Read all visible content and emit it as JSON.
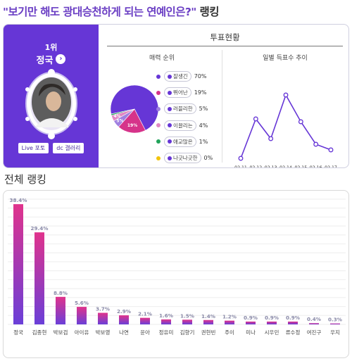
{
  "headline": {
    "question": "\"보기만 해도 광대승천하게 되는 연예인은?\"",
    "suffix": " 랭킹"
  },
  "winner": {
    "rank_label": "1위",
    "name": "정국",
    "arrow": "›",
    "links": [
      "Live 포토",
      "dc 갤러리"
    ]
  },
  "vote": {
    "title": "투표현황",
    "charm_title": "매력 순위",
    "daily_title": "일별 득표수 추이"
  },
  "colors": {
    "accent": "#6636d6",
    "bar_top": "#e0338c",
    "bar_bottom": "#6a3fd8"
  },
  "chart_data": [
    {
      "type": "pie",
      "title": "매력 순위",
      "labels": [
        "잘생긴",
        "뛰어난",
        "러블리한",
        "이끌리는",
        "애교많은",
        "나긋나긋한"
      ],
      "values": [
        70,
        19,
        5,
        4,
        1,
        0
      ],
      "value_labels": [
        "70%",
        "19%",
        "5%",
        "4%",
        "1%",
        "0%"
      ],
      "slice_labels": [
        "",
        "19%",
        "5%",
        "4%",
        "",
        ""
      ],
      "colors": [
        "#6636d6",
        "#d6338a",
        "#a07fe0",
        "#e088c4",
        "#22a35a",
        "#f2c40c"
      ],
      "legend_position": "right"
    },
    {
      "type": "line",
      "title": "일별 득표수 추이",
      "x": [
        "02.11",
        "02.12",
        "02.13",
        "02.14",
        "02.15",
        "02.16",
        "02.17"
      ],
      "y": [
        2,
        58,
        30,
        92,
        54,
        22,
        14
      ],
      "ylim": [
        0,
        120
      ],
      "grid": false
    },
    {
      "type": "bar",
      "title": "전체 랭킹",
      "categories": [
        "정국",
        "김종현",
        "박보검",
        "아이유",
        "박보영",
        "나연",
        "윤아",
        "정유미",
        "김향기",
        "권현빈",
        "주이",
        "미나",
        "시우민",
        "류수정",
        "여진구",
        "우지"
      ],
      "values": [
        38.4,
        29.4,
        8.8,
        5.6,
        3.7,
        2.9,
        2.1,
        1.6,
        1.5,
        1.4,
        1.2,
        0.9,
        0.9,
        0.9,
        0.4,
        0.3
      ],
      "value_labels": [
        "38.4%",
        "29.4%",
        "8.8%",
        "5.6%",
        "3.7%",
        "2.9%",
        "2.1%",
        "1.6%",
        "1.5%",
        "1.4%",
        "1.2%",
        "0.9%",
        "0.9%",
        "0.9%",
        "0.4%",
        "0.3%"
      ],
      "ylim": [
        0,
        40
      ],
      "grid": true
    }
  ]
}
